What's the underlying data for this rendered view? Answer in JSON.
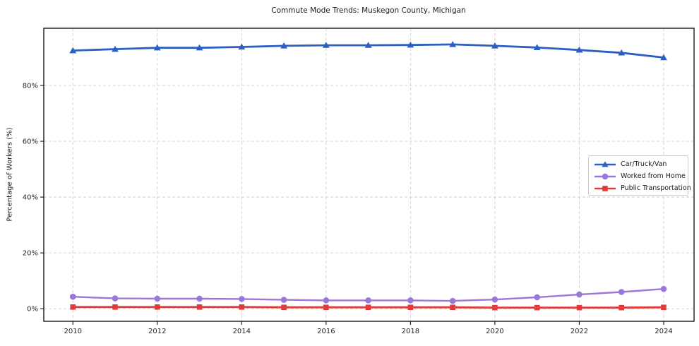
{
  "page": {
    "background": "#ffffff"
  },
  "chart_data": {
    "type": "line",
    "title": "Commute Mode Trends: Muskegon County, Michigan",
    "ylabel": "Percentage of Workers (%)",
    "xlabel": "",
    "x": [
      2010,
      2011,
      2012,
      2013,
      2014,
      2015,
      2016,
      2017,
      2018,
      2019,
      2020,
      2021,
      2022,
      2023,
      2024
    ],
    "series": [
      {
        "name": "Car/Truck/Van",
        "color": "#2b5fc1",
        "marker": "triangle",
        "values": [
          92.5,
          93.0,
          93.5,
          93.5,
          93.8,
          94.2,
          94.4,
          94.4,
          94.5,
          94.7,
          94.2,
          93.6,
          92.7,
          91.7,
          90.0
        ]
      },
      {
        "name": "Worked from Home",
        "color": "#9b77d9",
        "marker": "circle",
        "values": [
          4.3,
          3.7,
          3.6,
          3.6,
          3.5,
          3.2,
          3.0,
          3.0,
          3.0,
          2.8,
          3.3,
          4.1,
          5.1,
          6.0,
          7.1
        ]
      },
      {
        "name": "Public Transportation",
        "color": "#e03b3b",
        "marker": "square",
        "values": [
          0.6,
          0.6,
          0.6,
          0.6,
          0.6,
          0.5,
          0.5,
          0.5,
          0.5,
          0.5,
          0.4,
          0.4,
          0.4,
          0.4,
          0.5
        ]
      }
    ],
    "xticks": [
      2010,
      2012,
      2014,
      2016,
      2018,
      2020,
      2022,
      2024
    ],
    "xtick_labels": [
      "2010",
      "2012",
      "2014",
      "2016",
      "2018",
      "2020",
      "2022",
      "2024"
    ],
    "yticks": [
      0,
      20,
      40,
      60,
      80
    ],
    "ytick_labels": [
      "0%",
      "20%",
      "40%",
      "60%",
      "80%"
    ],
    "xlim": [
      2009.31,
      2024.72
    ],
    "ylim": [
      -4.5,
      100.5
    ],
    "grid": true,
    "grid_color": "#d0d0d0",
    "frame_color": "#1a1a1a",
    "tick_text_color": "#262626",
    "legend_position": "center-right"
  }
}
